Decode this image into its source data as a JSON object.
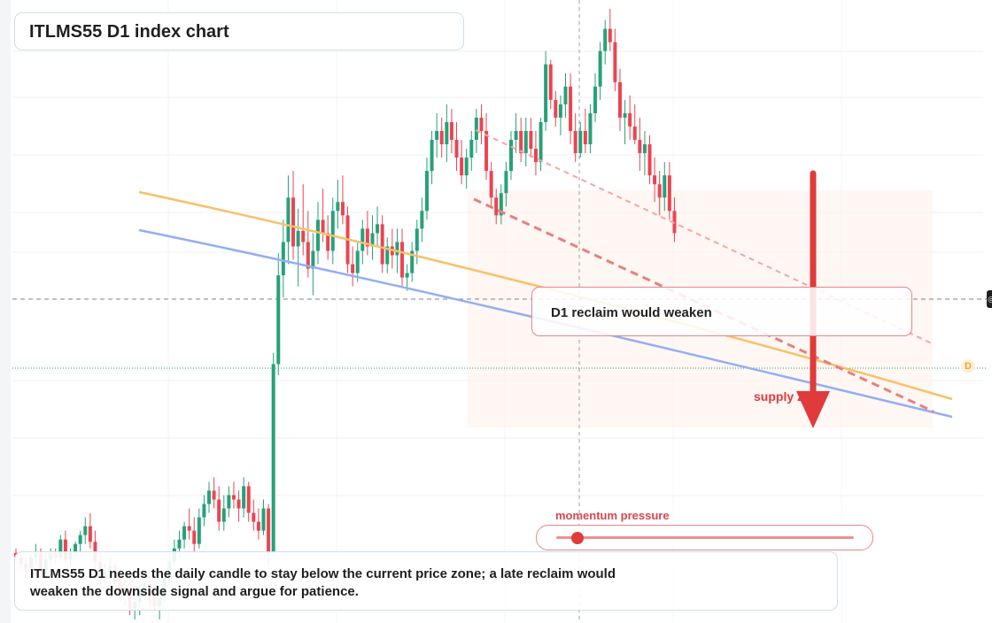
{
  "title": "ITLMS55 D1 index chart",
  "annotations": {
    "reclaim_label": "D1 reclaim would weaken",
    "supply_label": "supply zone",
    "momentum_label": "momentum pressure",
    "momentum_level": 0.07,
    "note": "ITLMS55 D1 needs the daily candle to stay below the current price zone; a late reclaim would weaken the downside signal and argue for patience.",
    "marker_letter": "D"
  },
  "colors": {
    "bullish": "#26a17a",
    "bearish": "#e94553",
    "ma_fast": "#f7c16b",
    "ma_slow": "#94aef2",
    "accent_red": "#e03a3a"
  },
  "chart_data": {
    "type": "candlestick",
    "price_range": [
      0,
      100
    ],
    "ohlc": [
      [
        60,
        62,
        56,
        58
      ],
      [
        58,
        60,
        52,
        55
      ],
      [
        55,
        58,
        50,
        53
      ],
      [
        53,
        60,
        51,
        58
      ],
      [
        58,
        64,
        55,
        60
      ],
      [
        60,
        62,
        49,
        52
      ],
      [
        52,
        60,
        50,
        57
      ],
      [
        57,
        62,
        54,
        60
      ],
      [
        60,
        62,
        55,
        58
      ],
      [
        58,
        68,
        56,
        66
      ],
      [
        66,
        70,
        55,
        57
      ],
      [
        57,
        62,
        54,
        60
      ],
      [
        60,
        65,
        58,
        64
      ],
      [
        64,
        70,
        60,
        68
      ],
      [
        68,
        76,
        64,
        72
      ],
      [
        72,
        78,
        62,
        65
      ],
      [
        65,
        70,
        52,
        56
      ],
      [
        56,
        60,
        45,
        48
      ],
      [
        48,
        55,
        44,
        52
      ],
      [
        52,
        58,
        46,
        54
      ],
      [
        54,
        56,
        44,
        47
      ],
      [
        47,
        50,
        38,
        41
      ],
      [
        41,
        48,
        36,
        44
      ],
      [
        44,
        50,
        32,
        35
      ],
      [
        35,
        42,
        30,
        38
      ],
      [
        38,
        46,
        32,
        44
      ],
      [
        44,
        52,
        40,
        46
      ],
      [
        46,
        50,
        36,
        40
      ],
      [
        40,
        44,
        34,
        36
      ],
      [
        36,
        42,
        30,
        40
      ],
      [
        40,
        52,
        38,
        50
      ],
      [
        50,
        60,
        46,
        56
      ],
      [
        56,
        66,
        54,
        62
      ],
      [
        62,
        70,
        58,
        66
      ],
      [
        66,
        74,
        62,
        72
      ],
      [
        72,
        80,
        66,
        70
      ],
      [
        70,
        76,
        60,
        64
      ],
      [
        64,
        80,
        62,
        76
      ],
      [
        76,
        86,
        72,
        82
      ],
      [
        82,
        92,
        78,
        88
      ],
      [
        88,
        94,
        80,
        84
      ],
      [
        84,
        90,
        70,
        74
      ],
      [
        74,
        86,
        70,
        80
      ],
      [
        80,
        90,
        76,
        86
      ],
      [
        86,
        92,
        80,
        84
      ],
      [
        84,
        88,
        74,
        80
      ],
      [
        80,
        94,
        76,
        90
      ],
      [
        90,
        92,
        74,
        78
      ],
      [
        78,
        84,
        70,
        74
      ],
      [
        74,
        80,
        66,
        70
      ],
      [
        70,
        84,
        68,
        80
      ],
      [
        80,
        82,
        54,
        60
      ],
      [
        60,
        150,
        58,
        145
      ],
      [
        145,
        195,
        140,
        185
      ],
      [
        185,
        210,
        175,
        200
      ],
      [
        200,
        230,
        190,
        220
      ],
      [
        220,
        232,
        192,
        198
      ],
      [
        198,
        215,
        180,
        205
      ],
      [
        205,
        226,
        194,
        200
      ],
      [
        200,
        214,
        184,
        188
      ],
      [
        188,
        204,
        176,
        196
      ],
      [
        196,
        218,
        190,
        210
      ],
      [
        210,
        224,
        200,
        204
      ],
      [
        204,
        212,
        192,
        196
      ],
      [
        196,
        220,
        190,
        214
      ],
      [
        214,
        228,
        206,
        218
      ],
      [
        218,
        230,
        208,
        212
      ],
      [
        212,
        216,
        186,
        190
      ],
      [
        190,
        198,
        180,
        186
      ],
      [
        186,
        200,
        182,
        196
      ],
      [
        196,
        210,
        190,
        206
      ],
      [
        206,
        214,
        194,
        198
      ],
      [
        198,
        212,
        192,
        204
      ],
      [
        204,
        216,
        198,
        208
      ],
      [
        208,
        212,
        186,
        190
      ],
      [
        190,
        202,
        186,
        198
      ],
      [
        198,
        206,
        188,
        194
      ],
      [
        194,
        206,
        186,
        200
      ],
      [
        200,
        206,
        180,
        184
      ],
      [
        184,
        190,
        178,
        186
      ],
      [
        186,
        200,
        182,
        196
      ],
      [
        196,
        210,
        190,
        206
      ],
      [
        206,
        220,
        200,
        214
      ],
      [
        214,
        238,
        210,
        232
      ],
      [
        232,
        250,
        226,
        246
      ],
      [
        246,
        258,
        238,
        250
      ],
      [
        250,
        256,
        238,
        244
      ],
      [
        244,
        262,
        236,
        254
      ],
      [
        254,
        260,
        240,
        246
      ],
      [
        246,
        254,
        232,
        238
      ],
      [
        238,
        246,
        226,
        230
      ],
      [
        230,
        242,
        224,
        238
      ],
      [
        238,
        250,
        232,
        246
      ],
      [
        246,
        260,
        240,
        256
      ],
      [
        256,
        262,
        244,
        250
      ],
      [
        250,
        258,
        228,
        232
      ],
      [
        232,
        236,
        216,
        220
      ],
      [
        220,
        224,
        208,
        212
      ],
      [
        212,
        226,
        208,
        222
      ],
      [
        222,
        236,
        216,
        232
      ],
      [
        232,
        250,
        228,
        246
      ],
      [
        246,
        258,
        240,
        250
      ],
      [
        250,
        256,
        236,
        240
      ],
      [
        240,
        256,
        234,
        250
      ],
      [
        250,
        256,
        238,
        242
      ],
      [
        242,
        250,
        230,
        236
      ],
      [
        236,
        256,
        232,
        254
      ],
      [
        254,
        286,
        250,
        280
      ],
      [
        280,
        282,
        260,
        264
      ],
      [
        264,
        268,
        252,
        256
      ],
      [
        256,
        266,
        248,
        262
      ],
      [
        262,
        276,
        256,
        270
      ],
      [
        270,
        276,
        244,
        250
      ],
      [
        250,
        258,
        236,
        240
      ],
      [
        240,
        254,
        238,
        250
      ],
      [
        250,
        260,
        240,
        244
      ],
      [
        244,
        262,
        240,
        258
      ],
      [
        258,
        276,
        254,
        270
      ],
      [
        270,
        290,
        264,
        286
      ],
      [
        286,
        300,
        280,
        296
      ],
      [
        296,
        305,
        286,
        290
      ],
      [
        290,
        296,
        268,
        272
      ],
      [
        272,
        278,
        250,
        256
      ],
      [
        256,
        264,
        244,
        258
      ],
      [
        258,
        266,
        246,
        252
      ],
      [
        252,
        262,
        244,
        246
      ],
      [
        246,
        256,
        232,
        240
      ],
      [
        240,
        250,
        230,
        244
      ],
      [
        244,
        248,
        226,
        230
      ],
      [
        230,
        238,
        218,
        226
      ],
      [
        226,
        232,
        212,
        220
      ],
      [
        220,
        236,
        214,
        230
      ],
      [
        230,
        236,
        210,
        214
      ],
      [
        214,
        220,
        200,
        204
      ]
    ]
  }
}
